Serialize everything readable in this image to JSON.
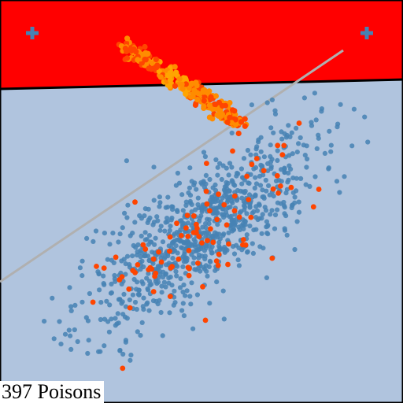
{
  "colors": {
    "region_upper": "#ff0000",
    "region_lower": "#b0c4de",
    "frame": "#000000",
    "boundary_line": "#000000",
    "reference_line": "#b0b0b0",
    "clean_points": "#4682b4",
    "poison_points": "#ff4500",
    "poison_cluster_gradient": [
      "#ff4500",
      "#ff8c00",
      "#ffa500"
    ]
  },
  "icons": {
    "marker_left": "plus-icon",
    "marker_right": "plus-icon"
  },
  "caption": {
    "count": 397,
    "text": "397 Poisons"
  }
}
